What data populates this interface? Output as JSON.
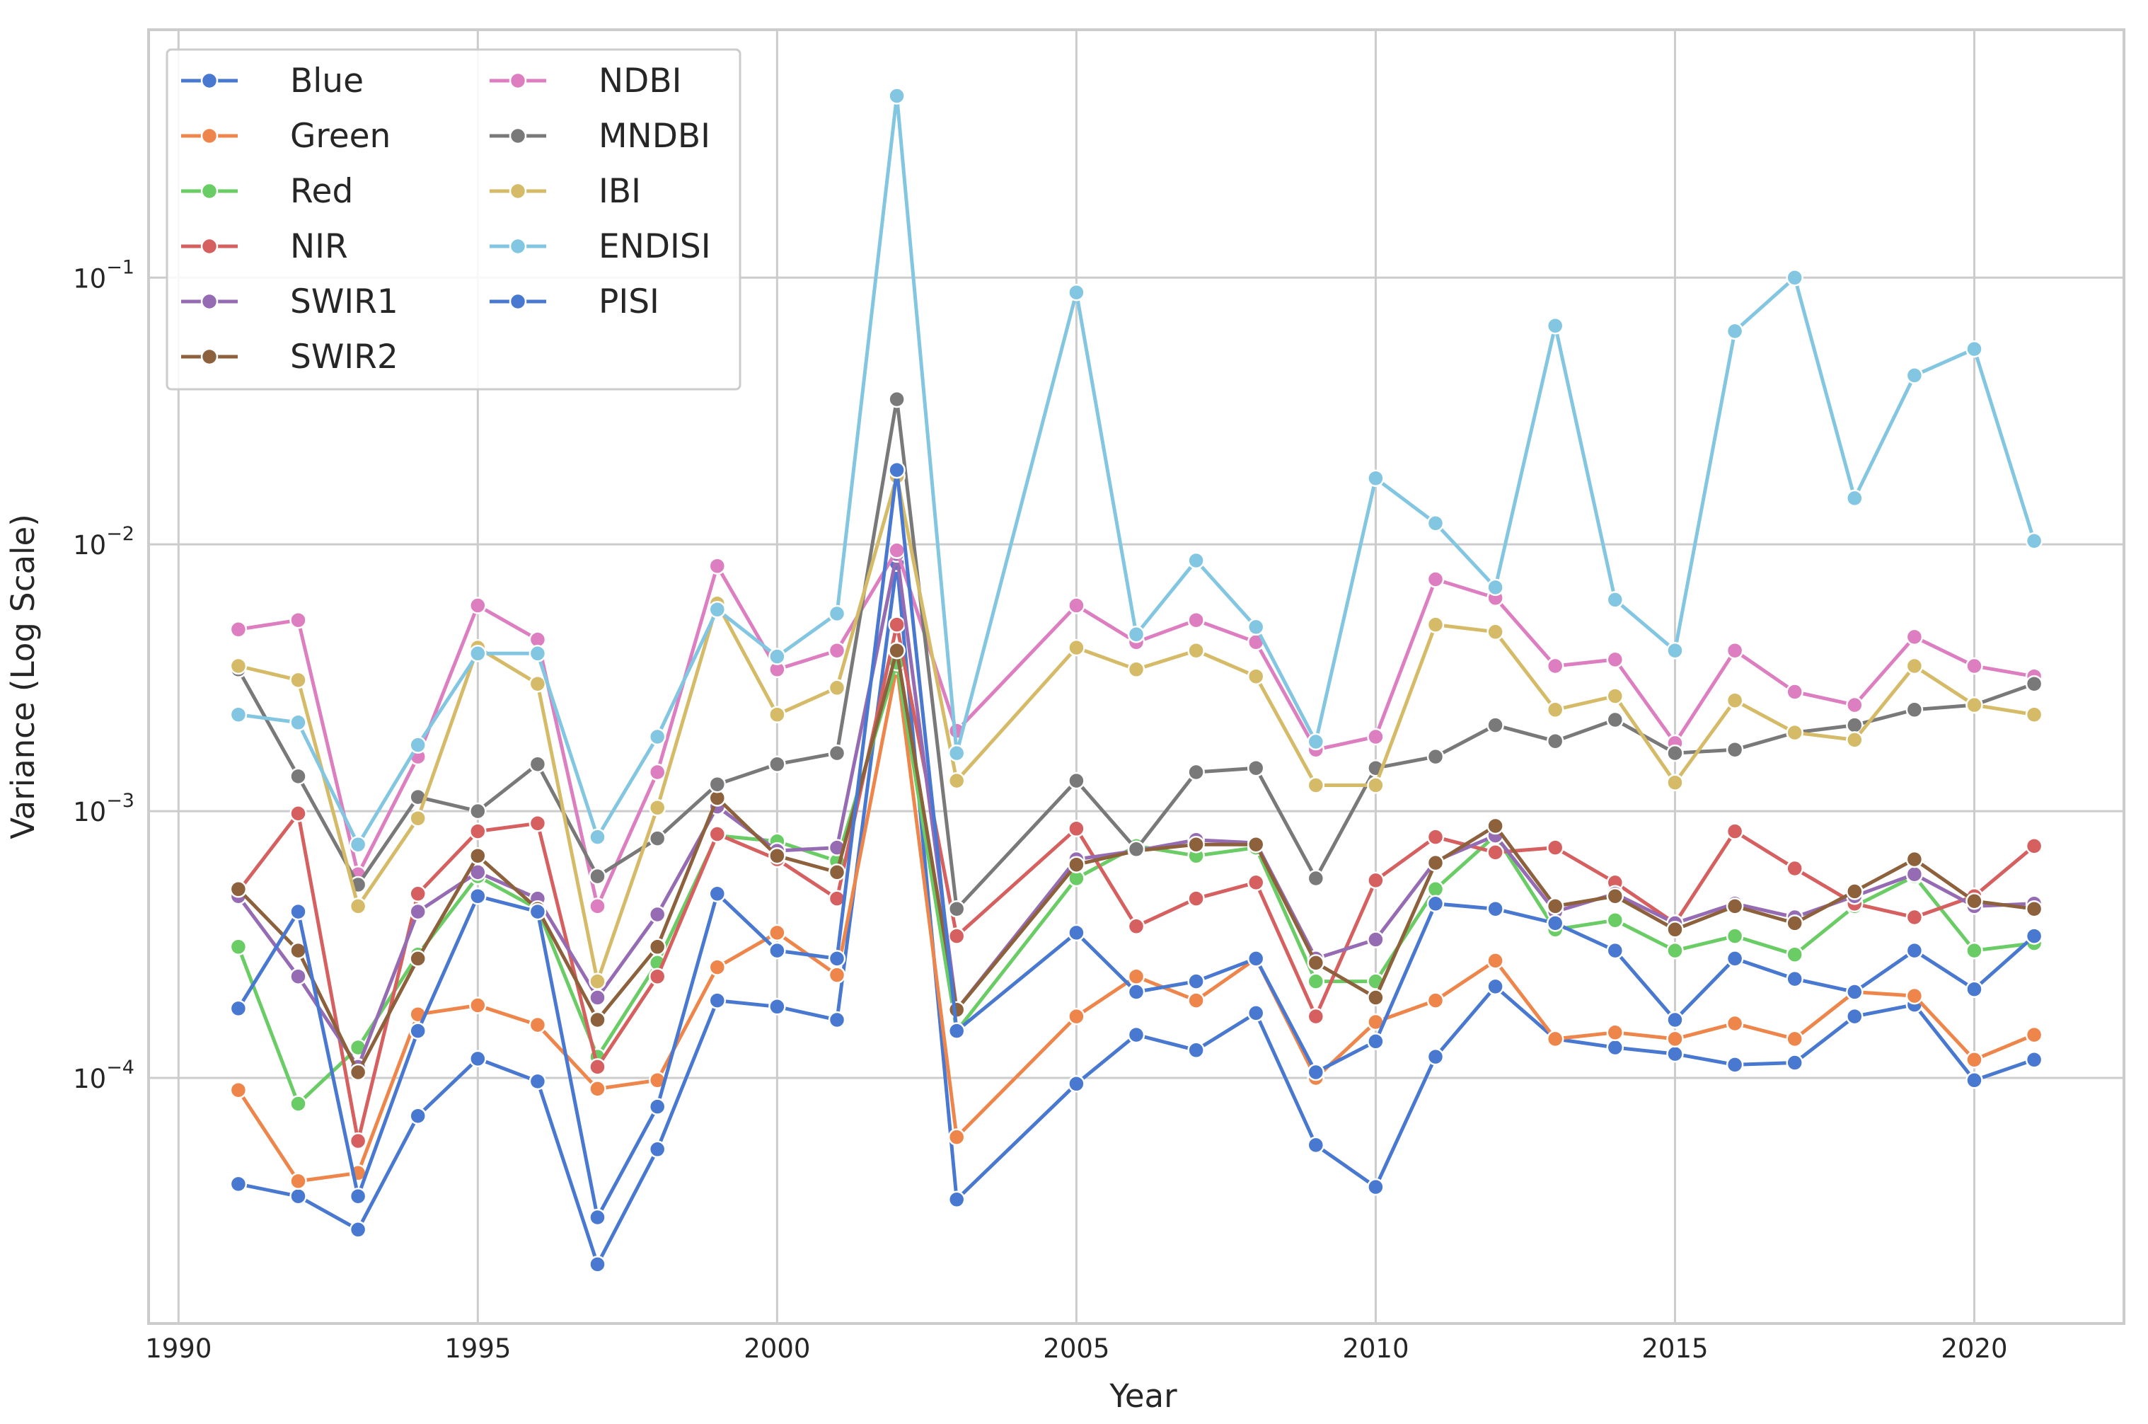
{
  "chart_data": {
    "type": "line",
    "xlabel": "Year",
    "ylabel": "Variance (Log Scale)",
    "yscale": "log",
    "xlim": [
      1989.5,
      2022.5
    ],
    "ylim": [
      1.2e-05,
      0.85
    ],
    "xticks": [
      1990,
      1995,
      2000,
      2005,
      2010,
      2015,
      2020
    ],
    "yticks": [
      {
        "value": 0.0001,
        "base": "10",
        "exp": "−4"
      },
      {
        "value": 0.001,
        "base": "10",
        "exp": "−3"
      },
      {
        "value": 0.01,
        "base": "10",
        "exp": "−2"
      },
      {
        "value": 0.1,
        "base": "10",
        "exp": "−1"
      }
    ],
    "grid": true,
    "legend": {
      "position": "top-left",
      "columns": 2
    },
    "x": [
      1991,
      1992,
      1993,
      1994,
      1995,
      1996,
      1997,
      1998,
      1999,
      2000,
      2001,
      2002,
      2003,
      2004,
      2005,
      2006,
      2007,
      2008,
      2009,
      2010,
      2011,
      2012,
      2013,
      2014,
      2015,
      2016,
      2017,
      2018,
      2019,
      2020,
      2021
    ],
    "series": [
      {
        "name": "Blue",
        "color": "#4878d0",
        "values": [
          4e-05,
          3.6e-05,
          2.7e-05,
          7.2e-05,
          0.000118,
          9.7e-05,
          2e-05,
          5.4e-05,
          0.000195,
          0.000185,
          0.000165,
          0.0085,
          3.5e-05,
          null,
          9.5e-05,
          0.000145,
          0.000127,
          0.000175,
          5.6e-05,
          3.9e-05,
          0.00012,
          0.00022,
          0.00014,
          0.00013,
          0.000123,
          0.000112,
          0.000114,
          0.00017,
          0.000188,
          9.8e-05,
          0.000117
        ]
      },
      {
        "name": "Green",
        "color": "#ee854a",
        "values": [
          9e-05,
          4.1e-05,
          4.4e-05,
          0.000173,
          0.000187,
          0.000158,
          9.1e-05,
          9.8e-05,
          0.00026,
          0.00035,
          0.000243,
          0.0035,
          6e-05,
          null,
          0.00017,
          0.00024,
          0.000195,
          0.00028,
          0.0001,
          0.000162,
          0.000195,
          0.000275,
          0.00014,
          0.000148,
          0.00014,
          0.00016,
          0.00014,
          0.00021,
          0.000203,
          0.000117,
          0.000145
        ]
      },
      {
        "name": "Red",
        "color": "#6acc64",
        "values": [
          0.00031,
          8e-05,
          0.00013,
          0.00029,
          0.00057,
          0.00043,
          0.00012,
          0.00027,
          0.00081,
          0.00077,
          0.00065,
          0.0036,
          0.00015,
          null,
          0.00056,
          0.00074,
          0.00068,
          0.00073,
          0.00023,
          0.00023,
          0.00051,
          0.00081,
          0.00036,
          0.00039,
          0.0003,
          0.00034,
          0.00029,
          0.00044,
          0.00057,
          0.0003,
          0.00032
        ]
      },
      {
        "name": "NIR",
        "color": "#d65f5f",
        "values": [
          0.0005,
          0.00098,
          5.8e-05,
          0.00049,
          0.00084,
          0.0009,
          0.00011,
          0.00024,
          0.00082,
          0.00066,
          0.00047,
          0.005,
          0.00034,
          null,
          0.00086,
          0.00037,
          0.00047,
          0.00054,
          0.00017,
          0.00055,
          0.0008,
          0.0007,
          0.00073,
          0.00054,
          0.00038,
          0.00084,
          0.00061,
          0.00045,
          0.0004,
          0.00048,
          0.00074
        ]
      },
      {
        "name": "SWIR1",
        "color": "#956cb4",
        "values": [
          0.00048,
          0.00024,
          0.00011,
          0.00042,
          0.00059,
          0.00047,
          0.0002,
          0.00041,
          0.00104,
          0.00071,
          0.00073,
          0.0092,
          0.00018,
          null,
          0.00066,
          0.00071,
          0.00078,
          0.00076,
          0.00028,
          0.00033,
          0.00065,
          0.00081,
          0.00042,
          0.00049,
          0.00038,
          0.00045,
          0.0004,
          0.00048,
          0.00058,
          0.00044,
          0.00045
        ]
      },
      {
        "name": "SWIR2",
        "color": "#8c613c",
        "values": [
          0.00051,
          0.0003,
          0.000105,
          0.00028,
          0.00068,
          0.00043,
          0.000165,
          0.00031,
          0.00112,
          0.00068,
          0.00059,
          0.004,
          0.00018,
          null,
          0.00063,
          0.00071,
          0.00075,
          0.00075,
          0.00027,
          0.0002,
          0.00064,
          0.00088,
          0.00044,
          0.00048,
          0.00036,
          0.00044,
          0.00038,
          0.0005,
          0.00066,
          0.00046,
          0.00043
        ]
      },
      {
        "name": "NDBI",
        "color": "#dc7ec0",
        "values": [
          0.0048,
          0.0052,
          0.00058,
          0.0016,
          0.0059,
          0.0044,
          0.00044,
          0.0014,
          0.0083,
          0.0034,
          0.004,
          0.0095,
          0.002,
          null,
          0.0059,
          0.0043,
          0.0052,
          0.0043,
          0.0017,
          0.0019,
          0.0074,
          0.0063,
          0.0035,
          0.0037,
          0.0018,
          0.004,
          0.0028,
          0.0025,
          0.0045,
          0.0035,
          0.0032
        ]
      },
      {
        "name": "MNDBI",
        "color": "#797979",
        "values": [
          0.0034,
          0.00135,
          0.00053,
          0.00113,
          0.001,
          0.0015,
          0.00057,
          0.00079,
          0.00126,
          0.0015,
          0.00165,
          0.035,
          0.00043,
          null,
          0.0013,
          0.00072,
          0.0014,
          0.00145,
          0.00056,
          0.00145,
          0.0016,
          0.0021,
          0.00183,
          0.0022,
          0.00165,
          0.0017,
          0.00197,
          0.0021,
          0.0024,
          0.0025,
          0.003
        ]
      },
      {
        "name": "IBI",
        "color": "#d5bb67",
        "values": [
          0.0035,
          0.0031,
          0.00044,
          0.00094,
          0.0041,
          0.003,
          0.00023,
          0.00103,
          0.006,
          0.0023,
          0.0029,
          0.018,
          0.0013,
          null,
          0.0041,
          0.0034,
          0.004,
          0.0032,
          0.00125,
          0.00125,
          0.005,
          0.0047,
          0.0024,
          0.0027,
          0.00128,
          0.0026,
          0.00197,
          0.00185,
          0.0035,
          0.0025,
          0.0023
        ]
      },
      {
        "name": "ENDISI",
        "color": "#82c6e2",
        "values": [
          0.0023,
          0.00215,
          0.00075,
          0.00177,
          0.0039,
          0.0039,
          0.0008,
          0.0019,
          0.0057,
          0.0038,
          0.0055,
          0.48,
          0.00165,
          null,
          0.088,
          0.0046,
          0.0087,
          0.0049,
          0.00182,
          0.0177,
          0.012,
          0.0069,
          0.066,
          0.0062,
          0.004,
          0.063,
          0.1,
          0.0149,
          0.043,
          0.054,
          0.0103
        ]
      },
      {
        "name": "PISI",
        "color": "#4878d0",
        "values": [
          0.000182,
          0.00042,
          3.6e-05,
          0.00015,
          0.00048,
          0.00042,
          3e-05,
          7.8e-05,
          0.00049,
          0.0003,
          0.00028,
          0.019,
          0.00015,
          null,
          0.00035,
          0.00021,
          0.00023,
          0.00028,
          0.000105,
          0.000137,
          0.00045,
          0.00043,
          0.00038,
          0.0003,
          0.000165,
          0.00028,
          0.000235,
          0.00021,
          0.0003,
          0.000215,
          0.00034
        ]
      }
    ]
  }
}
